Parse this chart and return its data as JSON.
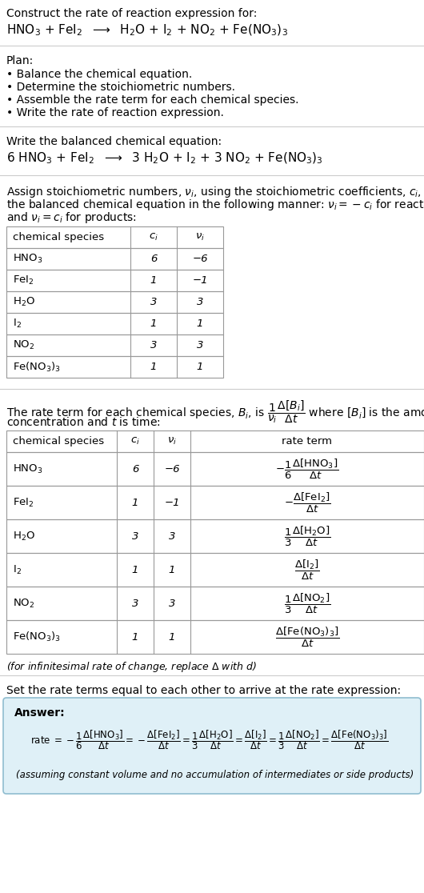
{
  "title_line1": "Construct the rate of reaction expression for:",
  "bg_color": "#ffffff",
  "text_color": "#000000",
  "table_border_color": "#999999",
  "separator_color": "#cccccc",
  "answer_box_color": "#dff0f7",
  "answer_box_border": "#90bdd0",
  "table1_rows": [
    [
      "HNO3",
      "6",
      "−6"
    ],
    [
      "FeI2",
      "1",
      "−1"
    ],
    [
      "H2O",
      "3",
      "3"
    ],
    [
      "I2",
      "1",
      "1"
    ],
    [
      "NO2",
      "3",
      "3"
    ],
    [
      "FeNO33",
      "1",
      "1"
    ]
  ],
  "table2_rows": [
    [
      "HNO3",
      "6",
      "−6"
    ],
    [
      "FeI2",
      "1",
      "−1"
    ],
    [
      "H2O",
      "3",
      "3"
    ],
    [
      "I2",
      "1",
      "1"
    ],
    [
      "NO2",
      "3",
      "3"
    ],
    [
      "FeNO33",
      "1",
      "1"
    ]
  ]
}
